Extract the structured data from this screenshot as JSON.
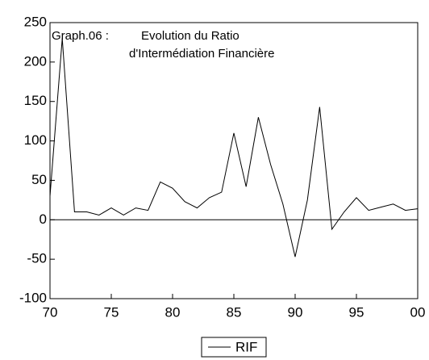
{
  "chart_data": {
    "type": "line",
    "title": "Graph.06 :",
    "title_line_1": "Evolution du Ratio",
    "title_line_2": "d'Intermédiation  Financière",
    "x": [
      70,
      71,
      72,
      73,
      74,
      75,
      76,
      77,
      78,
      79,
      80,
      81,
      82,
      83,
      84,
      85,
      86,
      87,
      88,
      89,
      90,
      91,
      92,
      93,
      94,
      95,
      96,
      97,
      98,
      99,
      100
    ],
    "series": [
      {
        "name": "RIF",
        "color": "#000000",
        "values": [
          30,
          230,
          10,
          10,
          6,
          15,
          6,
          15,
          12,
          48,
          40,
          23,
          15,
          28,
          35,
          110,
          42,
          130,
          70,
          20,
          -47,
          25,
          143,
          -12,
          10,
          28,
          12,
          16,
          20,
          12,
          14
        ]
      }
    ],
    "xlim": [
      70,
      100
    ],
    "xticks": [
      70,
      75,
      80,
      85,
      90,
      95,
      {
        "value": 100,
        "label": "00"
      }
    ],
    "ylim": [
      -100,
      250
    ],
    "yticks": [
      250,
      200,
      150,
      100,
      50,
      0,
      -50,
      -100
    ],
    "zero_line": true,
    "legend": "bottom"
  }
}
